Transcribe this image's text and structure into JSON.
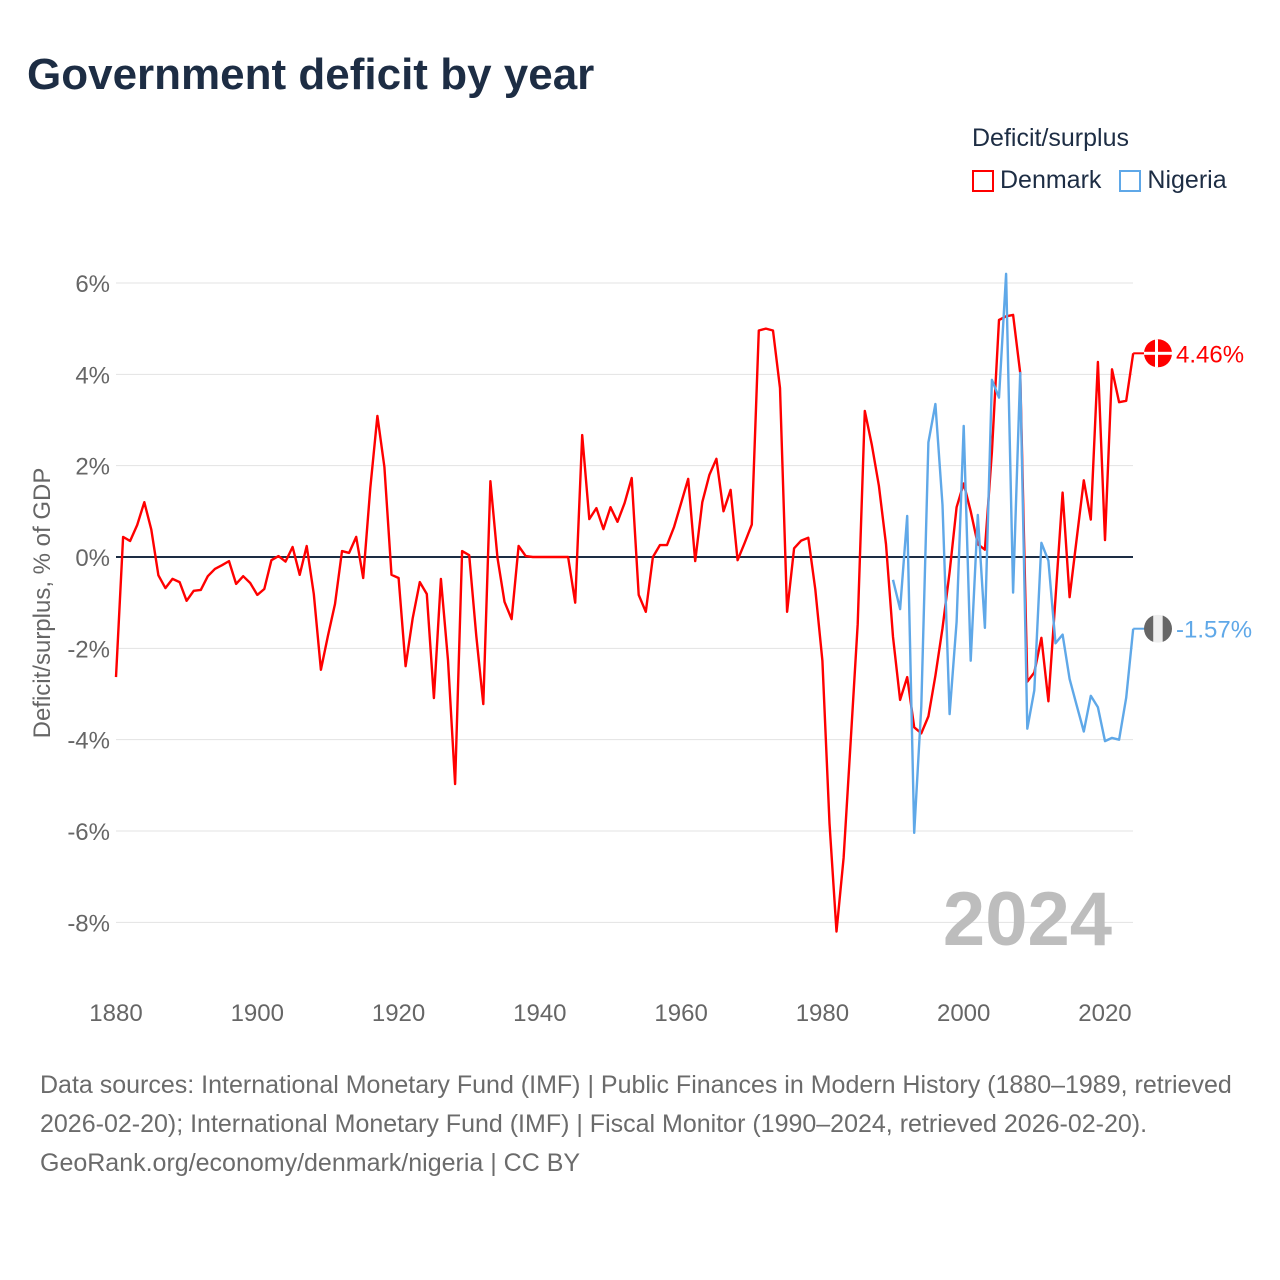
{
  "title": "Government deficit by year",
  "legend": {
    "title": "Deficit/surplus",
    "items": [
      {
        "name": "Denmark",
        "color": "#ff0000"
      },
      {
        "name": "Nigeria",
        "color": "#5fa8e8"
      }
    ]
  },
  "footer": {
    "sources": "Data sources: International Monetary Fund (IMF) | Public Finances in Modern History (1880–1989, retrieved 2026-02-20); International Monetary Fund (IMF) | Fiscal Monitor (1990–2024, retrieved 2026-02-20).",
    "link": "GeoRank.org/economy/denmark/nigeria | CC BY"
  },
  "chart_data": {
    "type": "line",
    "title": "Government deficit by year",
    "xlabel": "",
    "ylabel": "Deficit/surplus, % of GDP",
    "xlim": [
      1880,
      2024
    ],
    "ylim": [
      -8.5,
      6.2
    ],
    "x_ticks": [
      "1880",
      "1900",
      "1920",
      "1940",
      "1960",
      "1980",
      "2000",
      "2020"
    ],
    "y_ticks": [
      {
        "v": 6,
        "label": "6%"
      },
      {
        "v": 4,
        "label": "4%"
      },
      {
        "v": 2,
        "label": "2%"
      },
      {
        "v": 0,
        "label": "0%"
      },
      {
        "v": -2,
        "label": "-2%"
      },
      {
        "v": -4,
        "label": "-4%"
      },
      {
        "v": -6,
        "label": "-6%"
      },
      {
        "v": -8,
        "label": "-8%"
      }
    ],
    "watermark_year": "2024",
    "series": [
      {
        "name": "Denmark",
        "color": "#ff0000",
        "start": 1880,
        "end_label": "4.46%",
        "values": [
          -2.63,
          0.44,
          0.35,
          0.7,
          1.2,
          0.6,
          -0.4,
          -0.68,
          -0.48,
          -0.55,
          -0.96,
          -0.74,
          -0.72,
          -0.42,
          -0.26,
          -0.18,
          -0.09,
          -0.59,
          -0.42,
          -0.57,
          -0.83,
          -0.7,
          -0.07,
          0.02,
          -0.1,
          0.22,
          -0.39,
          0.24,
          -0.81,
          -2.47,
          -1.73,
          -1.03,
          0.13,
          0.09,
          0.44,
          -0.46,
          1.51,
          3.09,
          1.97,
          -0.39,
          -0.46,
          -2.39,
          -1.34,
          -0.55,
          -0.81,
          -3.09,
          -0.48,
          -2.26,
          -4.97,
          0.13,
          0.04,
          -1.73,
          -3.22,
          1.66,
          -0.02,
          -0.98,
          -1.36,
          0.24,
          0.02,
          0,
          0,
          0,
          0,
          0,
          0,
          -1.0,
          2.67,
          0.83,
          1.07,
          0.61,
          1.09,
          0.77,
          1.18,
          1.73,
          -0.83,
          -1.2,
          0,
          0.26,
          0.26,
          0.66,
          1.18,
          1.71,
          -0.09,
          1.2,
          1.8,
          2.15,
          1.0,
          1.47,
          -0.07,
          0.31,
          0.71,
          4.96,
          5.0,
          4.96,
          3.7,
          -1.2,
          0.19,
          0.36,
          0.42,
          -0.71,
          -2.27,
          -5.83,
          -8.2,
          -6.59,
          -4.03,
          -1.47,
          3.2,
          2.46,
          1.56,
          0.28,
          -1.75,
          -3.13,
          -2.63,
          -3.73,
          -3.86,
          -3.49,
          -2.6,
          -1.56,
          -0.33,
          1.09,
          1.61,
          1.0,
          0.28,
          0.16,
          2.3,
          5.19,
          5.27,
          5.3,
          4.03,
          -2.73,
          -2.53,
          -1.77,
          -3.16,
          -0.9,
          1.41,
          -0.88,
          0.4,
          1.68,
          0.82,
          4.27,
          0.37,
          4.11,
          3.39,
          3.42,
          4.46
        ]
      },
      {
        "name": "Nigeria",
        "color": "#5fa8e8",
        "start": 1990,
        "end_label": "-1.57%",
        "values": [
          -0.5,
          -1.14,
          0.9,
          -6.04,
          -3.27,
          2.51,
          3.35,
          1.14,
          -3.44,
          -1.42,
          2.87,
          -2.27,
          0.92,
          -1.55,
          3.88,
          3.49,
          6.2,
          -0.78,
          4.03,
          -3.76,
          -2.92,
          0.31,
          -0.08,
          -1.89,
          -1.7,
          -2.67,
          -3.25,
          -3.82,
          -3.04,
          -3.29,
          -4.03,
          -3.96,
          -4.0,
          -3.08,
          -1.57
        ]
      }
    ]
  }
}
